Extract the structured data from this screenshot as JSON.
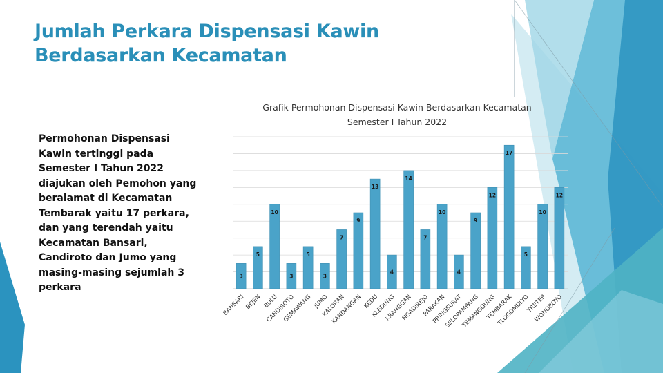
{
  "slide": {
    "title_line1": "Jumlah Perkara Dispensasi Kawin",
    "title_line2": "Berdasarkan Kecamatan",
    "body": "Permohonan Dispensasi Kawin tertinggi pada Semester I Tahun 2022 diajukan oleh Pemohon yang beralamat di Kecamatan Tembarak yaitu 17 perkara, dan yang terendah yaitu Kecamatan Bansari, Candiroto dan Jumo yang masing-masing sejumlah 3 perkara"
  },
  "colors": {
    "title": "#2a8fb8",
    "bar": "#4aa3c9",
    "bar_edge": "#3d8fb3",
    "grid": "#d9d9d9",
    "decor_dark": "#2b93bf",
    "decor_mid": "#5db8d6",
    "decor_light": "#9fd6e6",
    "decor_teal": "#4fb3c4"
  },
  "chart_data": {
    "type": "bar",
    "title": "Grafik Permohonan Dispensasi Kawin Berdasarkan Kecamatan",
    "subtitle": "Semester I Tahun 2022",
    "categories": [
      "BANSARI",
      "BEJEN",
      "BULU",
      "CANDIROTO",
      "GEMAWANG",
      "JUMO",
      "KALORAN",
      "KANDANGAN",
      "KEDU",
      "KLEDUNG",
      "KRANGGAN",
      "NGADIREJO",
      "PARAKAN",
      "PRINGSURAT",
      "SELOPAMPANG",
      "TEMANGGUNG",
      "TEMBARAK",
      "TLOGOMULYO",
      "TRETEP",
      "WONOBOYO"
    ],
    "values": [
      3,
      5,
      10,
      3,
      5,
      3,
      7,
      9,
      13,
      4,
      14,
      7,
      10,
      4,
      9,
      12,
      17,
      5,
      10,
      12
    ],
    "ylim": [
      0,
      18
    ],
    "grid": true,
    "data_labels": true,
    "legend": "none"
  }
}
